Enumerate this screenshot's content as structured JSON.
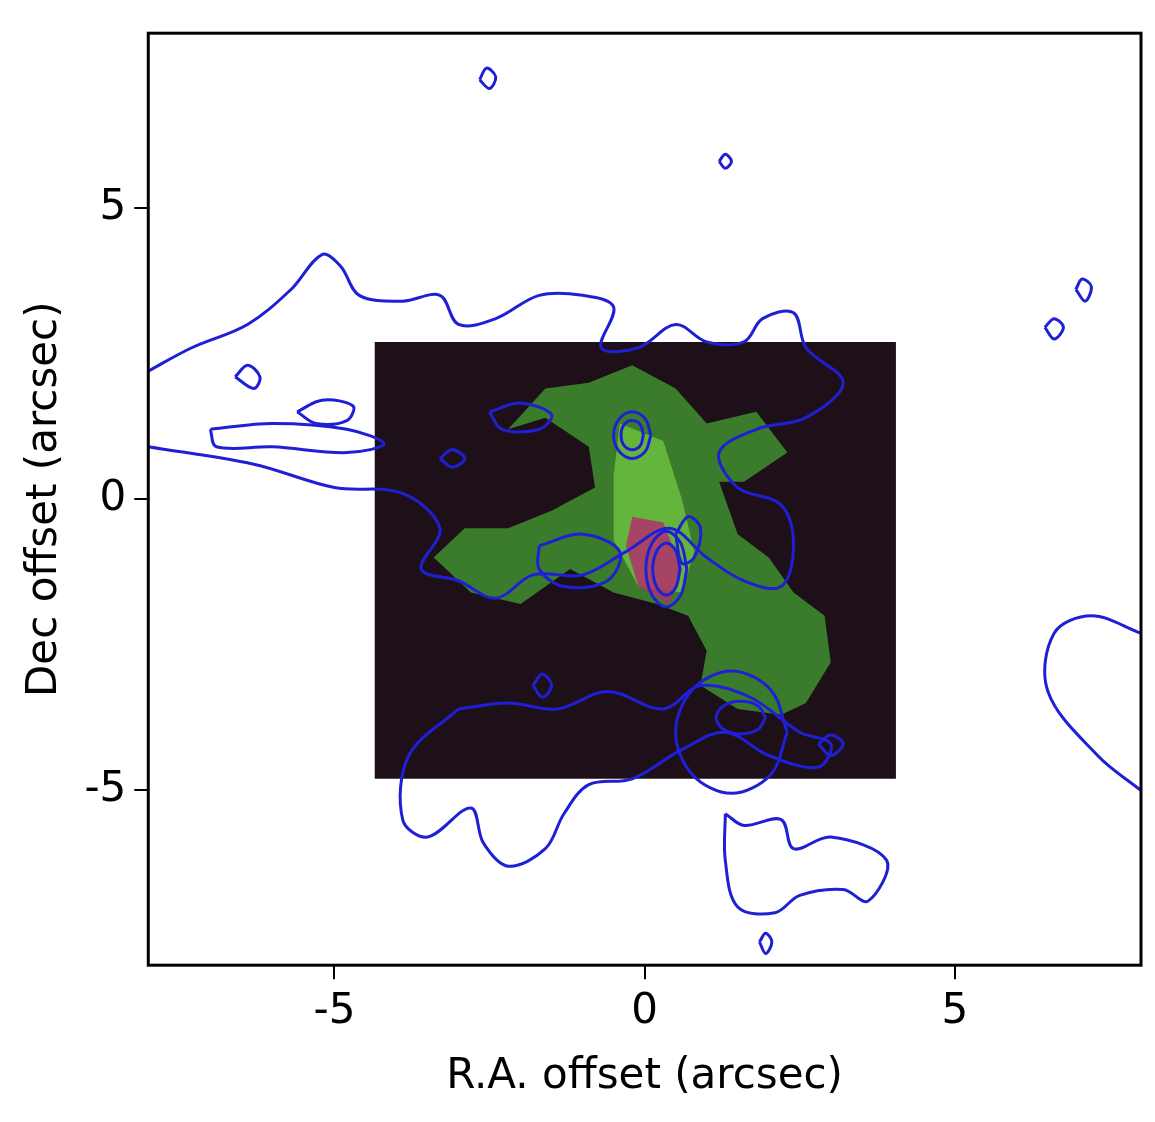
{
  "chart_data": {
    "type": "scatter",
    "xlabel": "R.A. offset (arcsec)",
    "ylabel": "Dec offset (arcsec)",
    "xlim": [
      -8,
      8
    ],
    "ylim": [
      -8,
      8
    ],
    "xticks": [
      -5,
      0,
      5
    ],
    "yticks": [
      -5,
      0,
      5
    ],
    "grid": false,
    "series": [
      {
        "type": "polygon",
        "color": "#1e1018",
        "values": [
          [
            -4.35,
            2.7
          ],
          [
            4.05,
            2.7
          ],
          [
            4.05,
            -4.8
          ],
          [
            -4.35,
            -4.8
          ],
          [
            -4.35,
            2.7
          ]
        ]
      },
      {
        "type": "polygon",
        "color": "#3f8f30",
        "values": [
          [
            -0.9,
            2.0
          ],
          [
            -0.2,
            2.3
          ],
          [
            0.5,
            1.9
          ],
          [
            1.0,
            1.3
          ],
          [
            1.8,
            1.5
          ],
          [
            2.3,
            0.8
          ],
          [
            1.6,
            0.3
          ],
          [
            1.2,
            0.3
          ],
          [
            1.5,
            -0.6
          ],
          [
            2.0,
            -1.0
          ],
          [
            2.4,
            -1.6
          ],
          [
            2.9,
            -2.0
          ],
          [
            3.0,
            -2.8
          ],
          [
            2.6,
            -3.5
          ],
          [
            2.2,
            -3.7
          ],
          [
            1.5,
            -3.6
          ],
          [
            0.9,
            -3.2
          ],
          [
            1.0,
            -2.6
          ],
          [
            0.7,
            -2.0
          ],
          [
            0.2,
            -1.8
          ],
          [
            -0.5,
            -1.6
          ],
          [
            -1.2,
            -1.2
          ],
          [
            -2.0,
            -1.8
          ],
          [
            -2.8,
            -1.6
          ],
          [
            -3.4,
            -1.0
          ],
          [
            -2.9,
            -0.5
          ],
          [
            -2.2,
            -0.5
          ],
          [
            -1.5,
            -0.2
          ],
          [
            -0.8,
            0.2
          ],
          [
            -0.9,
            0.9
          ],
          [
            -1.6,
            1.4
          ],
          [
            -2.2,
            1.2
          ],
          [
            -1.6,
            1.9
          ],
          [
            -0.9,
            2.0
          ]
        ]
      },
      {
        "type": "polygon",
        "color": "#6cc040",
        "values": [
          [
            -0.4,
            1.3
          ],
          [
            0.3,
            1.0
          ],
          [
            0.6,
            0.0
          ],
          [
            0.8,
            -0.9
          ],
          [
            0.6,
            -1.6
          ],
          [
            -0.1,
            -1.5
          ],
          [
            -0.5,
            -0.7
          ],
          [
            -0.5,
            0.4
          ],
          [
            -0.4,
            1.3
          ]
        ]
      },
      {
        "type": "polygon",
        "color": "#b0306a",
        "values": [
          [
            -0.2,
            -0.3
          ],
          [
            0.3,
            -0.4
          ],
          [
            0.6,
            -1.2
          ],
          [
            0.4,
            -1.8
          ],
          [
            -0.1,
            -1.5
          ],
          [
            -0.3,
            -0.8
          ],
          [
            -0.2,
            -0.3
          ]
        ]
      },
      {
        "type": "line",
        "color": "#1f1fd6",
        "values": [
          [
            -8,
            2.2
          ],
          [
            -7.3,
            2.6
          ],
          [
            -6.4,
            3.0
          ],
          [
            -5.7,
            3.6
          ],
          [
            -5.2,
            4.2
          ],
          [
            -4.9,
            4.0
          ],
          [
            -4.6,
            3.5
          ],
          [
            -3.9,
            3.4
          ],
          [
            -3.3,
            3.5
          ],
          [
            -3.0,
            3.0
          ],
          [
            -2.4,
            3.1
          ],
          [
            -1.7,
            3.5
          ],
          [
            -1.0,
            3.5
          ],
          [
            -0.5,
            3.3
          ],
          [
            -0.7,
            2.6
          ],
          [
            -0.1,
            2.6
          ],
          [
            0.5,
            3.0
          ],
          [
            1.0,
            2.7
          ],
          [
            1.6,
            2.7
          ],
          [
            1.9,
            3.1
          ],
          [
            2.4,
            3.2
          ],
          [
            2.6,
            2.6
          ],
          [
            3.2,
            2.0
          ],
          [
            2.6,
            1.4
          ],
          [
            1.8,
            1.2
          ],
          [
            1.2,
            0.8
          ],
          [
            1.5,
            0.2
          ],
          [
            2.2,
            -0.1
          ],
          [
            2.4,
            -0.8
          ],
          [
            2.2,
            -1.5
          ],
          [
            1.6,
            -1.4
          ],
          [
            1.0,
            -1.0
          ],
          [
            0.4,
            -0.5
          ],
          [
            -0.3,
            -0.9
          ],
          [
            -1.0,
            -1.3
          ],
          [
            -1.8,
            -1.3
          ],
          [
            -2.4,
            -1.7
          ],
          [
            -3.0,
            -1.4
          ],
          [
            -3.6,
            -1.2
          ],
          [
            -3.3,
            -0.5
          ],
          [
            -3.9,
            0.1
          ],
          [
            -5.0,
            0.2
          ],
          [
            -6.3,
            0.6
          ],
          [
            -8,
            0.9
          ]
        ]
      },
      {
        "type": "line",
        "color": "#1f1fd6",
        "values": [
          [
            -3.0,
            -3.6
          ],
          [
            -2.2,
            -3.5
          ],
          [
            -1.4,
            -3.6
          ],
          [
            -0.6,
            -3.3
          ],
          [
            0.3,
            -3.6
          ],
          [
            0.9,
            -3.2
          ],
          [
            1.7,
            -3.4
          ],
          [
            2.5,
            -4.0
          ],
          [
            3.0,
            -4.2
          ],
          [
            2.8,
            -4.6
          ],
          [
            2.0,
            -4.4
          ],
          [
            1.3,
            -4.0
          ],
          [
            0.6,
            -4.3
          ],
          [
            -0.2,
            -4.8
          ],
          [
            -0.9,
            -4.9
          ],
          [
            -1.3,
            -5.4
          ],
          [
            -1.6,
            -6.0
          ],
          [
            -2.2,
            -6.3
          ],
          [
            -2.6,
            -5.9
          ],
          [
            -2.8,
            -5.3
          ],
          [
            -3.5,
            -5.8
          ],
          [
            -3.9,
            -5.5
          ],
          [
            -3.8,
            -4.4
          ],
          [
            -3.0,
            -3.6
          ]
        ]
      },
      {
        "type": "line",
        "color": "#1f1fd6",
        "values": [
          [
            -7.0,
            1.2
          ],
          [
            -6.0,
            1.3
          ],
          [
            -4.8,
            1.2
          ],
          [
            -4.2,
            0.95
          ],
          [
            -4.8,
            0.8
          ],
          [
            -6.0,
            0.9
          ],
          [
            -6.9,
            0.9
          ],
          [
            -7.0,
            1.2
          ]
        ]
      },
      {
        "type": "line",
        "color": "#1f1fd6",
        "values": [
          [
            -5.6,
            1.5
          ],
          [
            -5.2,
            1.7
          ],
          [
            -4.7,
            1.6
          ],
          [
            -4.8,
            1.35
          ],
          [
            -5.3,
            1.3
          ],
          [
            -5.6,
            1.5
          ]
        ]
      },
      {
        "type": "line",
        "color": "#1f1fd6",
        "values": [
          [
            -6.6,
            2.1
          ],
          [
            -6.4,
            2.3
          ],
          [
            -6.2,
            2.1
          ],
          [
            -6.3,
            1.9
          ],
          [
            -6.6,
            2.1
          ]
        ]
      },
      {
        "type": "line",
        "color": "#1f1fd6",
        "values": [
          [
            -3.3,
            0.7
          ],
          [
            -3.1,
            0.85
          ],
          [
            -2.9,
            0.7
          ],
          [
            -3.1,
            0.55
          ],
          [
            -3.3,
            0.7
          ]
        ]
      },
      {
        "type": "line",
        "color": "#1f1fd6",
        "values": [
          [
            -2.5,
            1.5
          ],
          [
            -2.0,
            1.65
          ],
          [
            -1.5,
            1.45
          ],
          [
            -1.7,
            1.2
          ],
          [
            -2.3,
            1.2
          ],
          [
            -2.5,
            1.5
          ]
        ]
      },
      {
        "type": "line",
        "color": "#1f1fd6",
        "values": [
          [
            -1.7,
            -0.8
          ],
          [
            -1.0,
            -0.6
          ],
          [
            -0.4,
            -0.9
          ],
          [
            -0.6,
            -1.4
          ],
          [
            -1.3,
            -1.5
          ],
          [
            -1.7,
            -1.2
          ],
          [
            -1.7,
            -0.8
          ]
        ]
      },
      {
        "type": "line",
        "color": "#1f1fd6",
        "values": [
          [
            -1.8,
            -3.2
          ],
          [
            -1.65,
            -3.0
          ],
          [
            -1.5,
            -3.2
          ],
          [
            -1.65,
            -3.4
          ],
          [
            -1.8,
            -3.2
          ]
        ]
      },
      {
        "type": "line",
        "color": "#1f1fd6",
        "values": [
          [
            2.8,
            -4.2
          ],
          [
            3.0,
            -4.05
          ],
          [
            3.2,
            -4.2
          ],
          [
            3.0,
            -4.4
          ],
          [
            2.8,
            -4.2
          ]
        ]
      },
      {
        "type": "line",
        "color": "#1f1fd6",
        "values": [
          [
            0.68,
            -1.2
          ],
          [
            0.58,
            -0.75
          ],
          [
            0.35,
            -0.55
          ],
          [
            0.12,
            -0.75
          ],
          [
            0.02,
            -1.2
          ],
          [
            0.12,
            -1.65
          ],
          [
            0.35,
            -1.85
          ],
          [
            0.58,
            -1.65
          ],
          [
            0.68,
            -1.2
          ]
        ]
      },
      {
        "type": "line",
        "color": "#1f1fd6",
        "values": [
          [
            0.57,
            -1.2
          ],
          [
            0.5,
            -0.88
          ],
          [
            0.35,
            -0.75
          ],
          [
            0.2,
            -0.88
          ],
          [
            0.13,
            -1.2
          ],
          [
            0.2,
            -1.52
          ],
          [
            0.35,
            -1.65
          ],
          [
            0.5,
            -1.52
          ],
          [
            0.57,
            -1.2
          ]
        ]
      },
      {
        "type": "line",
        "color": "#1f1fd6",
        "values": [
          [
            0.5,
            -0.6
          ],
          [
            0.7,
            -0.3
          ],
          [
            0.9,
            -0.5
          ],
          [
            0.8,
            -1.0
          ],
          [
            0.6,
            -1.1
          ],
          [
            0.5,
            -0.6
          ]
        ]
      },
      {
        "type": "line",
        "color": "#1f1fd6",
        "values": [
          [
            0.1,
            1.1
          ],
          [
            0.01,
            1.38
          ],
          [
            -0.2,
            1.5
          ],
          [
            -0.41,
            1.38
          ],
          [
            -0.5,
            1.1
          ],
          [
            -0.41,
            0.82
          ],
          [
            -0.2,
            0.7
          ],
          [
            0.01,
            0.82
          ],
          [
            0.1,
            1.1
          ]
        ]
      },
      {
        "type": "line",
        "color": "#1f1fd6",
        "values": [
          [
            -0.02,
            1.1
          ],
          [
            -0.07,
            1.28
          ],
          [
            -0.2,
            1.35
          ],
          [
            -0.33,
            1.28
          ],
          [
            -0.38,
            1.1
          ],
          [
            -0.33,
            0.92
          ],
          [
            -0.2,
            0.85
          ],
          [
            -0.07,
            0.92
          ],
          [
            -0.02,
            1.1
          ]
        ]
      },
      {
        "type": "line",
        "color": "#1f1fd6",
        "values": [
          [
            2.3,
            -4.0
          ],
          [
            2.03,
            -3.27
          ],
          [
            1.4,
            -2.95
          ],
          [
            0.77,
            -3.27
          ],
          [
            0.5,
            -4.0
          ],
          [
            0.77,
            -4.73
          ],
          [
            1.4,
            -5.05
          ],
          [
            2.03,
            -4.73
          ],
          [
            2.3,
            -4.0
          ]
        ]
      },
      {
        "type": "line",
        "color": "#1f1fd6",
        "values": [
          [
            1.95,
            -3.75
          ],
          [
            1.83,
            -3.55
          ],
          [
            1.55,
            -3.47
          ],
          [
            1.27,
            -3.55
          ],
          [
            1.15,
            -3.75
          ],
          [
            1.27,
            -3.95
          ],
          [
            1.55,
            -4.03
          ],
          [
            1.83,
            -3.95
          ],
          [
            1.95,
            -3.75
          ]
        ]
      },
      {
        "type": "line",
        "color": "#1f1fd6",
        "values": [
          [
            1.3,
            -5.4
          ],
          [
            1.6,
            -5.6
          ],
          [
            2.2,
            -5.5
          ],
          [
            2.4,
            -6.0
          ],
          [
            3.0,
            -5.8
          ],
          [
            3.9,
            -6.2
          ],
          [
            3.6,
            -6.9
          ],
          [
            3.2,
            -6.7
          ],
          [
            2.5,
            -6.8
          ],
          [
            2.1,
            -7.1
          ],
          [
            1.5,
            -7.0
          ],
          [
            1.3,
            -6.2
          ],
          [
            1.3,
            -5.4
          ]
        ]
      },
      {
        "type": "line",
        "color": "#1f1fd6",
        "values": [
          [
            1.85,
            -7.6
          ],
          [
            1.95,
            -7.45
          ],
          [
            2.05,
            -7.6
          ],
          [
            1.95,
            -7.8
          ],
          [
            1.85,
            -7.6
          ]
        ]
      },
      {
        "type": "line",
        "color": "#1f1fd6",
        "values": [
          [
            8,
            -5.0
          ],
          [
            7.3,
            -4.4
          ],
          [
            6.5,
            -3.3
          ],
          [
            6.6,
            -2.3
          ],
          [
            7.2,
            -2.0
          ],
          [
            8,
            -2.3
          ]
        ]
      },
      {
        "type": "line",
        "color": "#1f1fd6",
        "values": [
          [
            -2.66,
            7.2
          ],
          [
            -2.55,
            7.4
          ],
          [
            -2.4,
            7.25
          ],
          [
            -2.5,
            7.05
          ],
          [
            -2.66,
            7.2
          ]
        ]
      },
      {
        "type": "line",
        "color": "#1f1fd6",
        "values": [
          [
            1.2,
            5.8
          ],
          [
            1.3,
            5.92
          ],
          [
            1.4,
            5.8
          ],
          [
            1.3,
            5.68
          ],
          [
            1.2,
            5.8
          ]
        ]
      },
      {
        "type": "line",
        "color": "#1f1fd6",
        "values": [
          [
            6.95,
            3.6
          ],
          [
            7.05,
            3.78
          ],
          [
            7.2,
            3.65
          ],
          [
            7.1,
            3.4
          ],
          [
            6.95,
            3.6
          ]
        ]
      },
      {
        "type": "line",
        "color": "#1f1fd6",
        "values": [
          [
            6.45,
            2.95
          ],
          [
            6.6,
            3.1
          ],
          [
            6.75,
            2.95
          ],
          [
            6.6,
            2.75
          ],
          [
            6.45,
            2.95
          ]
        ]
      }
    ]
  }
}
